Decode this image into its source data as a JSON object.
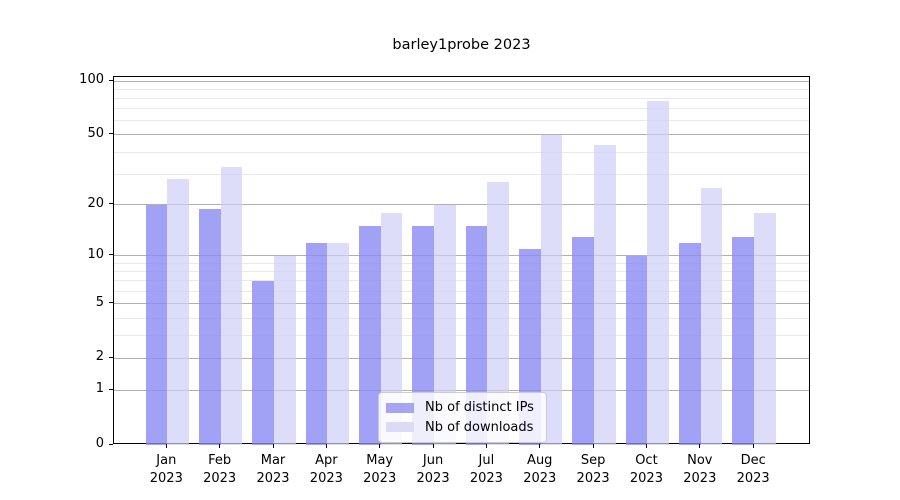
{
  "title": "barley1probe 2023",
  "legend": {
    "items": [
      {
        "key": "ips",
        "label": "Nb of distinct IPs",
        "color": "#a5a5f3"
      },
      {
        "key": "downloads",
        "label": "Nb of downloads",
        "color": "#dbdbf8"
      }
    ]
  },
  "axes": {
    "y_tick_labels": [
      "100",
      "50",
      "20",
      "10",
      "5",
      "2",
      "1",
      "0"
    ],
    "x_tick_labels": [
      "Jan 2023",
      "Feb 2023",
      "Mar 2023",
      "Apr 2023",
      "May 2023",
      "Jun 2023",
      "Jul 2023",
      "Aug 2023",
      "Sep 2023",
      "Oct 2023",
      "Nov 2023",
      "Dec 2023"
    ]
  },
  "chart_data": {
    "type": "bar",
    "title": "barley1probe 2023",
    "categories": [
      "Jan 2023",
      "Feb 2023",
      "Mar 2023",
      "Apr 2023",
      "May 2023",
      "Jun 2023",
      "Jul 2023",
      "Aug 2023",
      "Sep 2023",
      "Oct 2023",
      "Nov 2023",
      "Dec 2023"
    ],
    "series": [
      {
        "key": "ips",
        "name": "Nb of distinct IPs",
        "color": "rgba(138,138,242,0.8)",
        "values": [
          20,
          19,
          7,
          12,
          15,
          15,
          15,
          11,
          13,
          10,
          12,
          13
        ]
      },
      {
        "key": "downloads",
        "name": "Nb of downloads",
        "color": "rgba(206,206,247,0.7)",
        "values": [
          28,
          33,
          10,
          12,
          18,
          20,
          27,
          50,
          44,
          77,
          25,
          18
        ]
      }
    ],
    "xlabel": "",
    "ylabel": "",
    "scale": "log1p",
    "y_ticks": [
      0,
      1,
      2,
      5,
      10,
      20,
      50,
      100
    ],
    "y_minor_ticks": [
      3,
      4,
      6,
      7,
      8,
      9,
      30,
      40,
      60,
      70,
      80,
      90
    ],
    "ylim": [
      0,
      105
    ],
    "grid": true,
    "legend_position": "lower center"
  }
}
